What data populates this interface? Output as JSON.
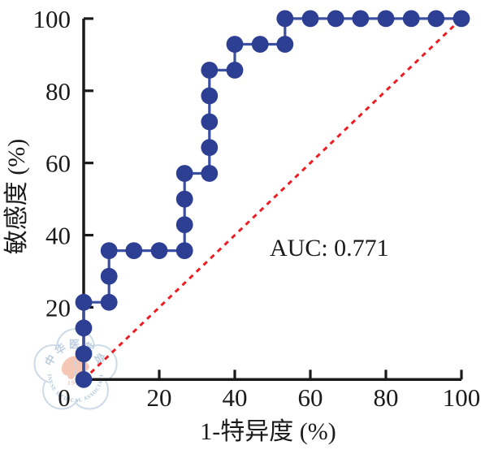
{
  "chart_data": {
    "type": "line",
    "subtype": "roc-step-curve",
    "xlabel": "1-特异度 (%)",
    "ylabel": "敏感度 (%)",
    "xlim": [
      0,
      100
    ],
    "ylim": [
      0,
      100
    ],
    "x_ticks": [
      0,
      20,
      40,
      60,
      80,
      100
    ],
    "y_ticks": [
      20,
      40,
      60,
      80,
      100
    ],
    "grid": "off",
    "legend": "none",
    "annotation_text": "AUC: 0.771",
    "series": [
      {
        "name": "ROC curve",
        "marker": "circle",
        "marker_color": "#2c3f93",
        "line_color": "#3c50a2",
        "points": [
          [
            0,
            0
          ],
          [
            0,
            7.1
          ],
          [
            0,
            14.3
          ],
          [
            0,
            21.4
          ],
          [
            6.7,
            21.4
          ],
          [
            6.7,
            28.6
          ],
          [
            6.7,
            35.7
          ],
          [
            13.3,
            35.7
          ],
          [
            20,
            35.7
          ],
          [
            26.7,
            35.7
          ],
          [
            26.7,
            42.9
          ],
          [
            26.7,
            50
          ],
          [
            26.7,
            57.1
          ],
          [
            33.3,
            57.1
          ],
          [
            33.3,
            64.3
          ],
          [
            33.3,
            71.4
          ],
          [
            33.3,
            78.6
          ],
          [
            33.3,
            85.7
          ],
          [
            40,
            85.7
          ],
          [
            40,
            92.9
          ],
          [
            46.7,
            92.9
          ],
          [
            53.3,
            92.9
          ],
          [
            53.3,
            100
          ],
          [
            60,
            100
          ],
          [
            66.7,
            100
          ],
          [
            73.3,
            100
          ],
          [
            80,
            100
          ],
          [
            86.7,
            100
          ],
          [
            93.3,
            100
          ],
          [
            100,
            100
          ]
        ]
      },
      {
        "name": "reference diagonal",
        "style": "dashed",
        "line_color": "#ee1c23",
        "points": [
          [
            0,
            0
          ],
          [
            100,
            100
          ]
        ]
      }
    ],
    "axis_color": "#1a1a1a"
  },
  "watermark": {
    "top_text": "中华医学会",
    "bottom_text": "CHINESE MEDICAL ASSOCIATION",
    "year": "1915"
  }
}
